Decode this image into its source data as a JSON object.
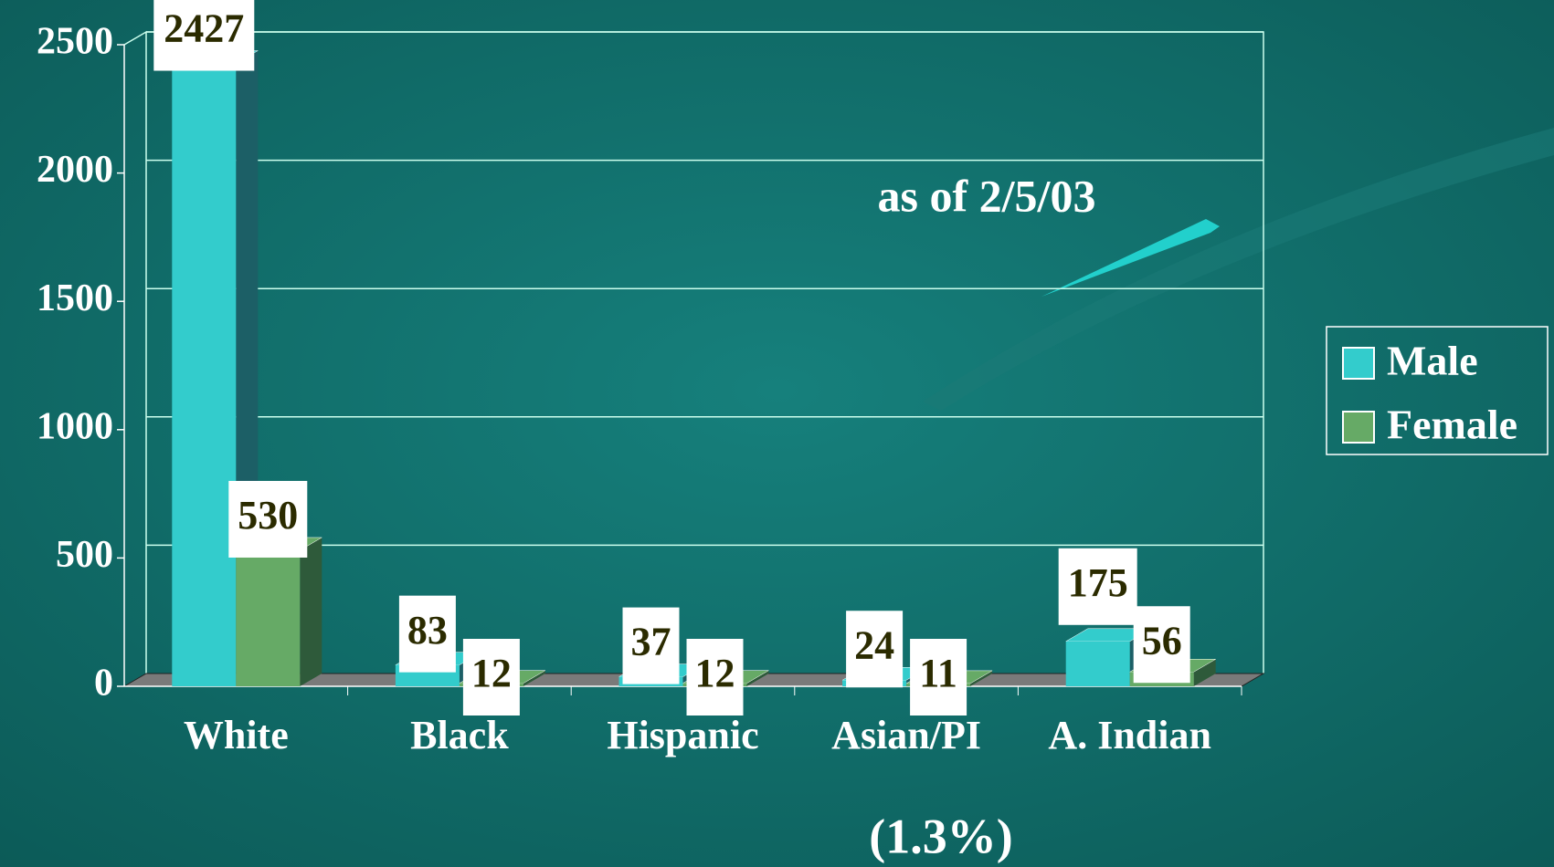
{
  "chart_data": {
    "type": "bar",
    "categories": [
      "White",
      "Black",
      "Hispanic",
      "Asian/PI",
      "A. Indian"
    ],
    "series": [
      {
        "name": "Male",
        "color": "#33cccc",
        "values": [
          2427,
          83,
          37,
          24,
          175
        ]
      },
      {
        "name": "Female",
        "color": "#66aa66",
        "values": [
          530,
          12,
          12,
          11,
          56
        ]
      }
    ],
    "ylim": [
      0,
      2500
    ],
    "yticks": [
      0,
      500,
      1000,
      1500,
      2000,
      2500
    ],
    "grid": true,
    "annotations": [
      "as of  2/5/03",
      "(1.3%)"
    ],
    "legend": "right"
  }
}
